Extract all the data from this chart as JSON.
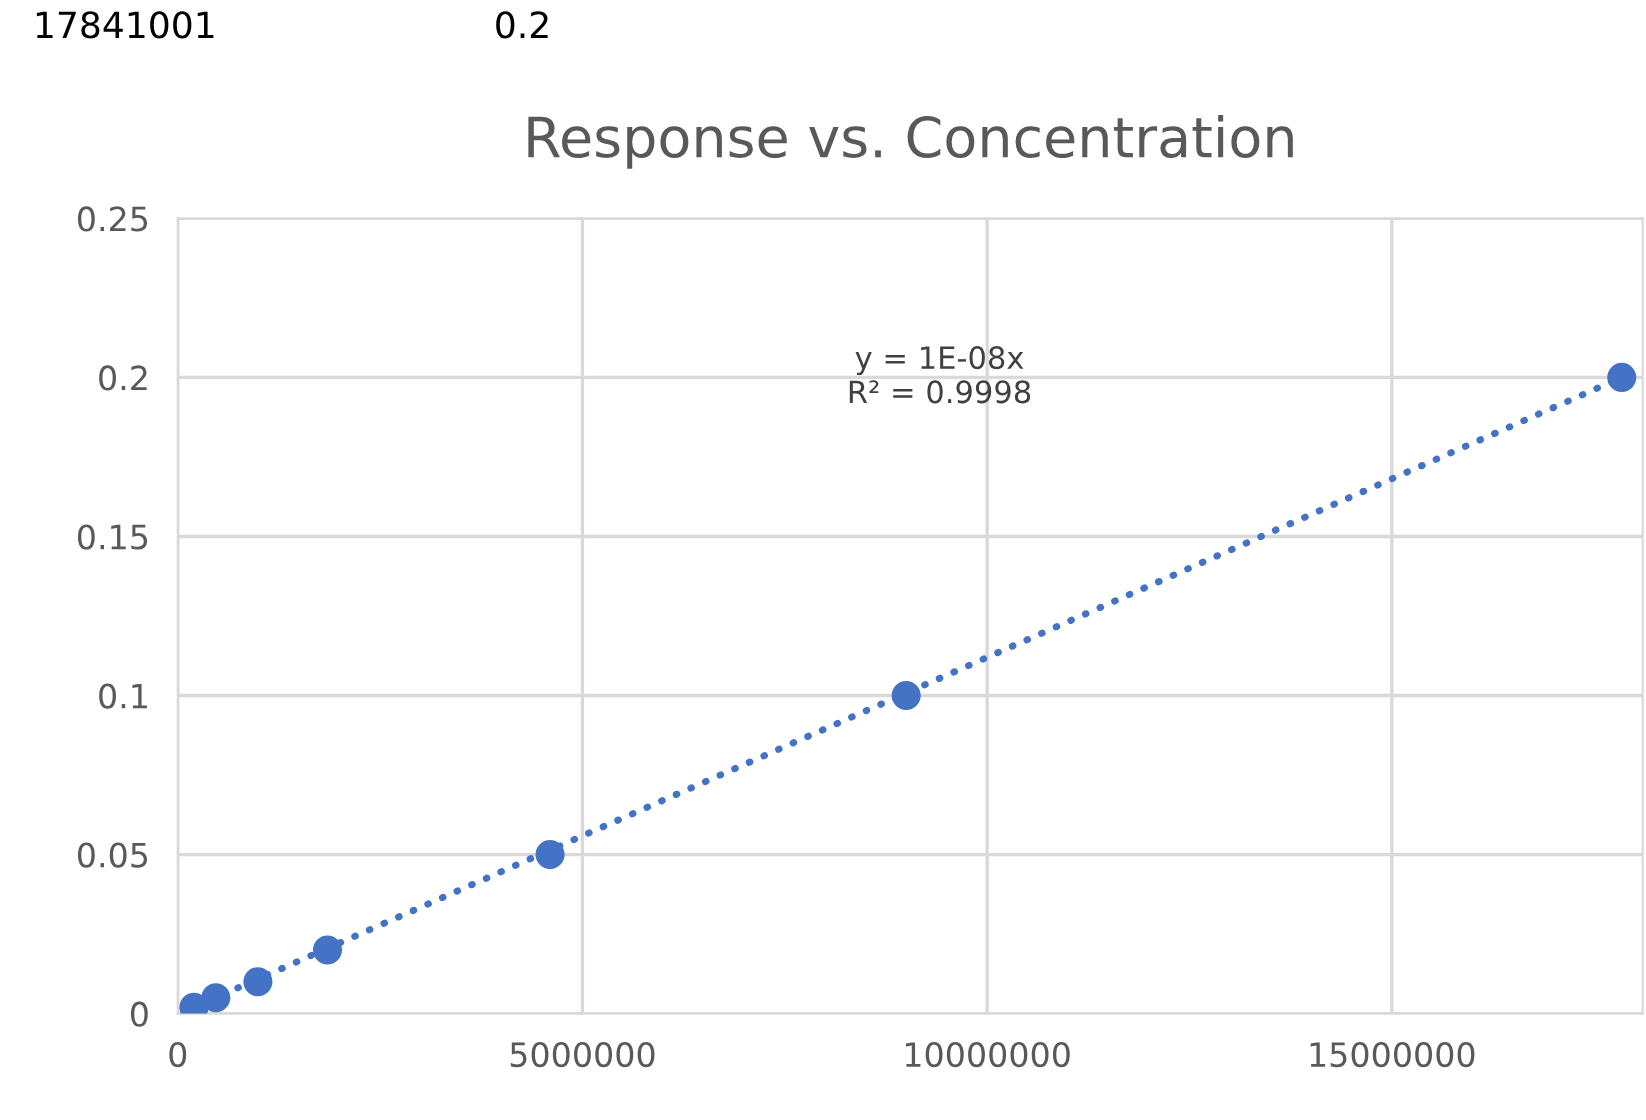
{
  "chart_data": {
    "type": "scatter",
    "title": "Response vs. Concentration",
    "series": [
      {
        "color": "#4472c4",
        "marker": "circle",
        "x": [
          200000,
          470000,
          990000,
          1850000,
          4600000,
          9000000,
          17841001
        ],
        "values": [
          0.002,
          0.005,
          0.01,
          0.02,
          0.05,
          0.1,
          0.2
        ]
      },
      {
        "type": "line",
        "color": "#4472c4",
        "marker": "none",
        "line_style": "dotted",
        "x": [
          200000,
          17841001
        ],
        "values": [
          0.002,
          0.2
        ]
      }
    ],
    "xlim": [
      0,
      18100000
    ],
    "xticks": [
      0,
      5000000,
      10000000,
      15000000
    ],
    "ylim": [
      0,
      0.25
    ],
    "yticks": [
      0,
      0.05,
      0.1,
      0.15,
      0.2,
      0.25
    ],
    "grid": true,
    "legend": false,
    "annotations": [
      "y = 1E-08x\nR² = 0.9998",
      "17841001",
      "0.2"
    ]
  }
}
